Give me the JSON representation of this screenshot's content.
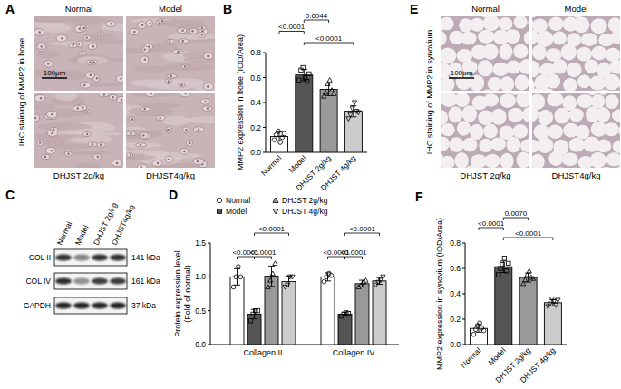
{
  "chart_data": [
    {
      "type": "bar",
      "panel_label": "B",
      "y_label": "MMP2 expression in bone (IOD/Area)",
      "categories": [
        "Normal",
        "Model",
        "DHJST 2g/kg",
        "DHJST 4g/kg"
      ],
      "values": [
        0.127,
        0.62,
        0.505,
        0.33
      ],
      "errors": [
        0.035,
        0.045,
        0.05,
        0.045
      ],
      "points": [
        [
          0.1,
          0.14,
          0.17,
          0.08,
          0.12,
          0.15
        ],
        [
          0.58,
          0.66,
          0.68,
          0.6,
          0.57,
          0.63
        ],
        [
          0.45,
          0.48,
          0.55,
          0.58,
          0.5,
          0.47
        ],
        [
          0.27,
          0.3,
          0.35,
          0.4,
          0.33,
          0.32
        ]
      ],
      "colors": [
        "#ffffff",
        "#555555",
        "#999999",
        "#cccccc"
      ],
      "ylim": [
        0,
        0.8
      ],
      "yticks": [
        {
          "value": 0,
          "label": "0.0"
        },
        0.2,
        0.4,
        0.6,
        0.8
      ],
      "annotations": [
        {
          "text": "<0.0001",
          "from": 1,
          "to": 3
        },
        {
          "text": "<0.0001",
          "from": 0,
          "to": 1
        },
        {
          "text": "0.0044",
          "from": 1,
          "to": 2
        }
      ]
    },
    {
      "type": "bar",
      "panel_label": "D",
      "y_label": [
        "Protein expression level",
        "(Fold of normal)"
      ],
      "categories": [
        "Collagen II",
        "Collagen IV"
      ],
      "legend": "top",
      "series": [
        {
          "name": "Normal",
          "color": "#ffffff",
          "marker": "circle",
          "values": [
            1.0,
            1.0
          ],
          "errors": [
            0.12,
            0.06
          ],
          "points": [
            [
              0.85,
              1.0,
              1.15,
              1.0
            ],
            [
              0.93,
              1.0,
              1.05,
              1.02
            ]
          ]
        },
        {
          "name": "Model",
          "color": "#555555",
          "marker": "square",
          "values": [
            0.45,
            0.45
          ],
          "errors": [
            0.07,
            0.03
          ],
          "points": [
            [
              0.35,
              0.45,
              0.5,
              0.5
            ],
            [
              0.42,
              0.45,
              0.47,
              0.46
            ]
          ]
        },
        {
          "name": "DHJST 2g/kg",
          "color": "#999999",
          "marker": "triangle",
          "values": [
            1.01,
            0.9
          ],
          "errors": [
            0.15,
            0.05
          ],
          "points": [
            [
              0.85,
              0.95,
              1.05,
              1.2
            ],
            [
              0.85,
              0.88,
              0.92,
              0.95
            ]
          ]
        },
        {
          "name": "DHJST 4g/kg",
          "color": "#cccccc",
          "marker": "triangle-down",
          "values": [
            0.93,
            0.94
          ],
          "errors": [
            0.08,
            0.05
          ],
          "points": [
            [
              0.85,
              0.88,
              1.0,
              1.0
            ],
            [
              0.88,
              0.92,
              0.95,
              1.0
            ]
          ]
        }
      ],
      "ylim": [
        0,
        1.5
      ],
      "yticks": [
        {
          "value": 0,
          "label": "0.0"
        },
        0.5,
        {
          "value": 1,
          "label": "1.0"
        },
        1.5
      ],
      "annotations": [
        {
          "text": "<0.0001",
          "category": 0,
          "from": 0,
          "to": 1
        },
        {
          "text": "<0.0001",
          "category": 0,
          "from": 1,
          "to": 3
        },
        {
          "text": "<0.0001",
          "category": 0,
          "from": 1,
          "to": 2
        },
        {
          "text": "<0.0001",
          "category": 1,
          "from": 0,
          "to": 1
        },
        {
          "text": "<0.0001",
          "category": 1,
          "from": 1,
          "to": 3
        },
        {
          "text": "<0.0001",
          "category": 1,
          "from": 1,
          "to": 2
        }
      ]
    },
    {
      "type": "bar",
      "panel_label": "F",
      "y_label": "MMP2 expression in synovium (IOD/Area)",
      "categories": [
        "Normal",
        "Model",
        "DHJST 2g/kg",
        "DHJST 4g/kg"
      ],
      "values": [
        0.127,
        0.613,
        0.528,
        0.33
      ],
      "errors": [
        0.03,
        0.045,
        0.035,
        0.025
      ],
      "points": [
        [
          0.08,
          0.12,
          0.15,
          0.17,
          0.13,
          0.11
        ],
        [
          0.55,
          0.6,
          0.63,
          0.68,
          0.58,
          0.64
        ],
        [
          0.48,
          0.51,
          0.55,
          0.58,
          0.53,
          0.52
        ],
        [
          0.3,
          0.32,
          0.36,
          0.34,
          0.31,
          0.35
        ]
      ],
      "colors": [
        "#ffffff",
        "#555555",
        "#999999",
        "#cccccc"
      ],
      "ylim": [
        0,
        0.8
      ],
      "yticks": [
        {
          "value": 0,
          "label": "0.0"
        },
        0.2,
        0.4,
        0.6,
        0.8
      ],
      "annotations": [
        {
          "text": "<0.0001",
          "from": 1,
          "to": 3
        },
        {
          "text": "<0.0001",
          "from": 0,
          "to": 1
        },
        {
          "text": "0.0070",
          "from": 1,
          "to": 2
        }
      ]
    }
  ],
  "images": [
    {
      "panel_label": "A",
      "side_label": "IHC staining of MMP2 in bone",
      "top_labels": [
        "Normal",
        "Model"
      ],
      "bottom_labels": [
        "DHJST 2g/kg",
        "DHJST4g/kg"
      ],
      "scale_bar": "100μm"
    },
    {
      "panel_label": "E",
      "side_label": "IHC staining of MMP2 in synovium",
      "top_labels": [
        "Normal",
        "Model"
      ],
      "bottom_labels": [
        "DHJST 2g/kg",
        "DHJST4g/kg"
      ],
      "scale_bar": "100μm"
    }
  ],
  "blot": {
    "panel_label": "C",
    "lanes": [
      "Normal",
      "Model",
      "DHJST 2g/kg",
      "DHJST4g/kg"
    ],
    "rows": [
      {
        "name": "COL II",
        "size": "141 kDa",
        "intensity": [
          0.85,
          0.5,
          0.85,
          0.85
        ]
      },
      {
        "name": "COL IV",
        "size": "161 kDa",
        "intensity": [
          0.85,
          0.45,
          0.8,
          0.8
        ]
      },
      {
        "name": "GAPDH",
        "size": "37 kDa",
        "intensity": [
          0.9,
          0.9,
          0.9,
          0.9
        ]
      }
    ]
  }
}
